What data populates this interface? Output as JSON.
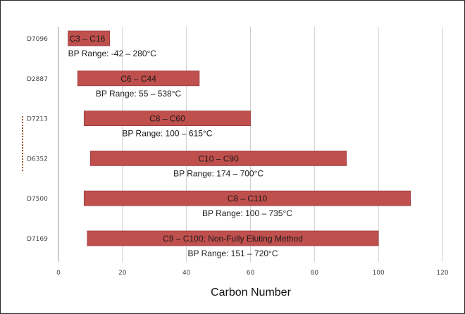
{
  "chart_data": {
    "type": "bar",
    "orientation": "horizontal",
    "floating": true,
    "xlabel": "Carbon Number",
    "ylabel": "",
    "xlim": [
      0,
      120
    ],
    "xticks": [
      "0",
      "20",
      "40",
      "60",
      "80",
      "100",
      "120"
    ],
    "grid": true,
    "legend": "none",
    "bar_color": "#c0504d",
    "categories": [
      "D7096",
      "D2887",
      "D7213",
      "D6352",
      "D7500",
      "D7169"
    ],
    "bars": [
      {
        "category": "D7096",
        "start": 3,
        "end": 16,
        "label": "C3 – C16",
        "bp_range": "BP Range: -42 – 280°C"
      },
      {
        "category": "D2887",
        "start": 6,
        "end": 44,
        "label": "C6 – C44",
        "bp_range": "BP Range: 55 – 538°C"
      },
      {
        "category": "D7213",
        "start": 8,
        "end": 60,
        "label": "C8 – C60",
        "bp_range": "BP Range: 100 – 615°C"
      },
      {
        "category": "D6352",
        "start": 10,
        "end": 90,
        "label": "C10 – C90",
        "bp_range": "BP Range: 174 – 700°C"
      },
      {
        "category": "D7500",
        "start": 8,
        "end": 110,
        "label": "C8 – C110",
        "bp_range": "BP Range: 100 – 735°C"
      },
      {
        "category": "D7169",
        "start": 9,
        "end": 100,
        "label": "C9 – C100; Non-Fully Eluting Method",
        "bp_range": "BP Range: 151 – 720°C"
      }
    ]
  }
}
